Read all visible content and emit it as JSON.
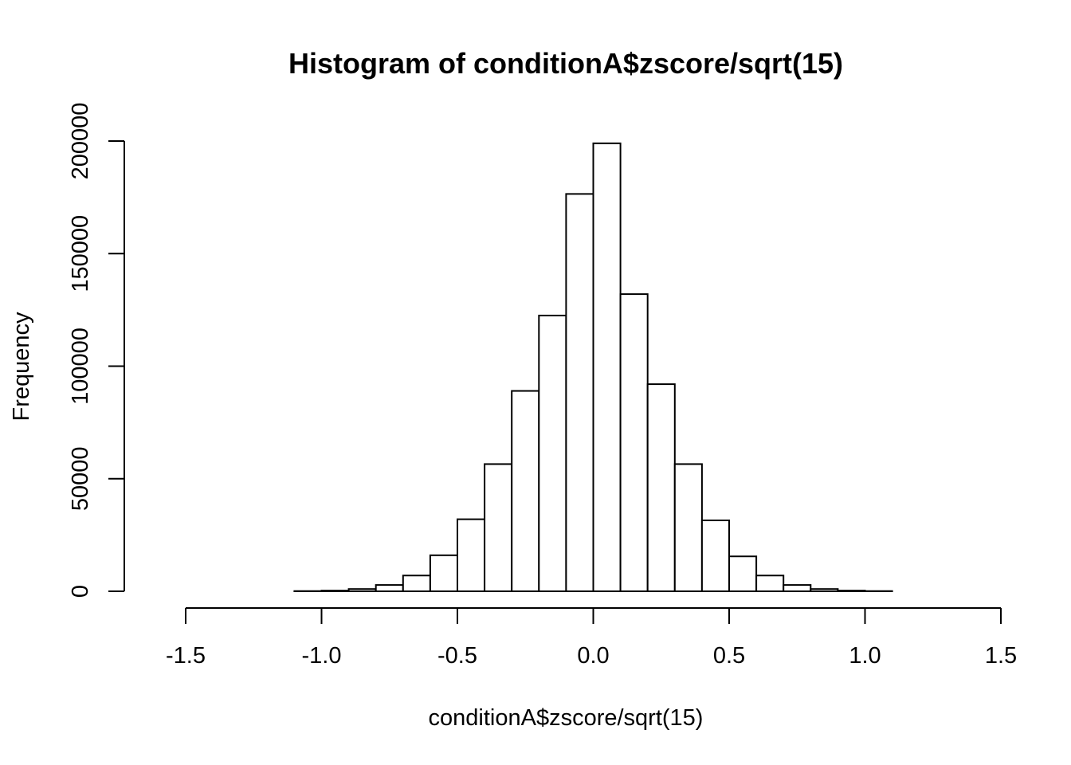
{
  "chart_data": {
    "type": "bar",
    "title": "Histogram of conditionA$zscore/sqrt(15)",
    "xlabel": "conditionA$zscore/sqrt(15)",
    "ylabel": "Frequency",
    "xlim": [
      -1.5,
      1.5
    ],
    "ylim": [
      0,
      200000
    ],
    "x_ticks": [
      -1.5,
      -1.0,
      -0.5,
      0.0,
      0.5,
      1.0,
      1.5
    ],
    "x_tick_labels": [
      "-1.5",
      "-1.0",
      "-0.5",
      "0.0",
      "0.5",
      "1.0",
      "1.5"
    ],
    "y_ticks": [
      0,
      50000,
      100000,
      150000,
      200000
    ],
    "y_tick_labels": [
      "0",
      "50000",
      "100000",
      "150000",
      "200000"
    ],
    "bin_edges": [
      -1.6,
      -1.5,
      -1.4,
      -1.3,
      -1.2,
      -1.1,
      -1.0,
      -0.9,
      -0.8,
      -0.7,
      -0.6,
      -0.5,
      -0.4,
      -0.3,
      -0.2,
      -0.1,
      0.0,
      0.1,
      0.2,
      0.3,
      0.4,
      0.5,
      0.6,
      0.7,
      0.8,
      0.9,
      1.0,
      1.1,
      1.2,
      1.3,
      1.4
    ],
    "values": [
      0,
      0,
      0,
      0,
      0,
      100,
      300,
      1000,
      2800,
      7000,
      16000,
      32000,
      56500,
      89000,
      122500,
      176500,
      199000,
      132000,
      92000,
      56500,
      31500,
      15500,
      7000,
      2800,
      1000,
      300,
      100,
      0,
      0,
      0
    ],
    "grid": false,
    "legend": "none"
  }
}
